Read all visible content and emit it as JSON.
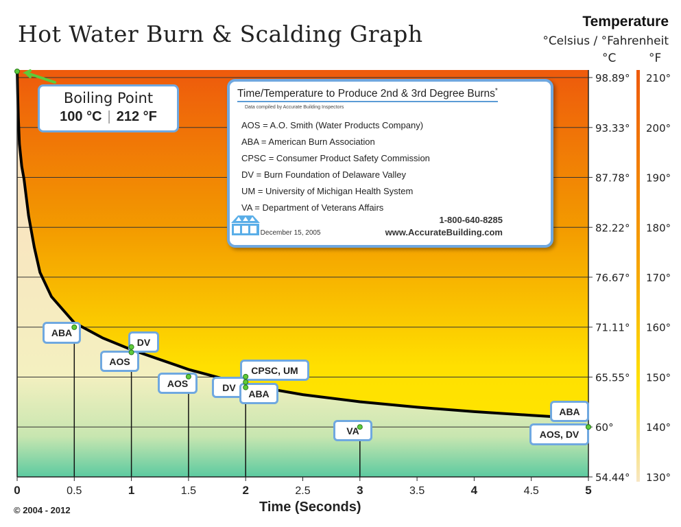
{
  "chart_data": {
    "type": "line",
    "title": "Hot Water Burn & Scalding Graph",
    "xlabel": "Time (Seconds)",
    "ylabel": "Temperature",
    "ylabel_sub": "°Celsius / °Fahrenheit",
    "unit_c": "°C",
    "unit_f": "°F",
    "xlim": [
      0,
      5
    ],
    "ylim_celsius": [
      54.44,
      100
    ],
    "x_ticks": [
      "0",
      "0.5",
      "1",
      "1.5",
      "2",
      "2.5",
      "3",
      "3.5",
      "4",
      "4.5",
      "5"
    ],
    "y_ticks_celsius": [
      "54.44°",
      "60°",
      "65.55°",
      "71.11°",
      "76.67°",
      "82.22°",
      "87.78°",
      "93.33°",
      "98.89°"
    ],
    "y_ticks_fahrenheit": [
      "130°",
      "140°",
      "150°",
      "160°",
      "170°",
      "180°",
      "190°",
      "200°",
      "210°"
    ],
    "grid": true,
    "curve": {
      "x": [
        0,
        0.005,
        0.01,
        0.02,
        0.04,
        0.06,
        0.1,
        0.15,
        0.2,
        0.3,
        0.5,
        0.75,
        1,
        1.5,
        2,
        2.5,
        3,
        3.5,
        4,
        4.5,
        5
      ],
      "y_celsius": [
        100,
        97,
        94.5,
        91.5,
        89,
        87.6,
        83.5,
        80,
        77.2,
        74.5,
        71.6,
        69.9,
        68.6,
        66.4,
        64.7,
        63.6,
        62.8,
        62.2,
        61.7,
        61.3,
        60.9
      ]
    },
    "points": [
      {
        "label": "ABA",
        "time": 0.5,
        "celsius": 71.1,
        "fahrenheit": 160
      },
      {
        "label": "DV",
        "time": 1,
        "celsius": 68.9,
        "fahrenheit": 156
      },
      {
        "label": "AOS",
        "time": 1,
        "celsius": 68.3,
        "fahrenheit": 155
      },
      {
        "label": "AOS",
        "time": 1.5,
        "celsius": 65.6,
        "fahrenheit": 150
      },
      {
        "label": "CPSC, UM",
        "time": 2,
        "celsius": 65.6,
        "fahrenheit": 150
      },
      {
        "label": "DV",
        "time": 2,
        "celsius": 65.0,
        "fahrenheit": 149
      },
      {
        "label": "ABA",
        "time": 2,
        "celsius": 64.4,
        "fahrenheit": 148
      },
      {
        "label": "VA",
        "time": 3,
        "celsius": 60,
        "fahrenheit": 140
      },
      {
        "label": "ABA",
        "time": 5,
        "celsius": 60,
        "fahrenheit": 140
      },
      {
        "label": "AOS, DV",
        "time": 5,
        "celsius": 60,
        "fahrenheit": 140
      }
    ],
    "boiling_point": {
      "title": "Boiling Point",
      "celsius": "100 °C",
      "separator": "|",
      "fahrenheit": "212 °F",
      "time": 0,
      "value": 100
    },
    "colors": {
      "hot": "#ee5a0c",
      "mid": "#f6a800",
      "warm": "#ffe000",
      "cream": "#f7e6c4",
      "cool": "#5ccaa0",
      "label_border": "#6fa8e0",
      "point": "#5ecb3a"
    }
  },
  "legend": {
    "title": "Time/Temperature to Produce 2nd & 3rd Degree Burns",
    "asterisk": "*",
    "subtitle": "Data compiled by Accurate Building Inspectors",
    "items": [
      "AOS = A.O. Smith (Water Products Company)",
      "ABA = American Burn Association",
      "CPSC = Consumer Product Safety Commission",
      "DV = Burn Foundation of Delaware Valley",
      "UM = University of Michigan Health System",
      "VA = Department of Veterans Affairs"
    ],
    "phone": "1-800-640-8285",
    "website": "www.AccurateBuilding.com",
    "date": "Date: December 15, 2005",
    "logo": "house-logo-icon"
  },
  "footer": {
    "copyright": "© 2004 - 2012"
  }
}
